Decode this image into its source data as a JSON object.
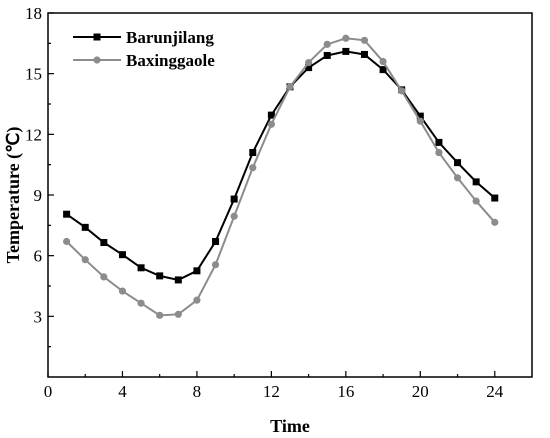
{
  "chart_data": {
    "type": "line",
    "xlabel": "Time",
    "ylabel": "Temperature (℃)",
    "xlim": [
      0,
      26
    ],
    "ylim": [
      0,
      18
    ],
    "xticks": [
      0,
      4,
      8,
      12,
      16,
      20,
      24
    ],
    "yticks": [
      3,
      6,
      9,
      12,
      15,
      18
    ],
    "grid": false,
    "legend_position": "top-left",
    "x": [
      1,
      2,
      3,
      4,
      5,
      6,
      7,
      8,
      9,
      10,
      11,
      12,
      13,
      14,
      15,
      16,
      17,
      18,
      19,
      20,
      21,
      22,
      23,
      24
    ],
    "series": [
      {
        "name": "Barunjilang",
        "color": "#000000",
        "marker": "square",
        "values": [
          8.05,
          7.4,
          6.65,
          6.05,
          5.4,
          5.0,
          4.8,
          5.25,
          6.7,
          8.8,
          11.1,
          12.95,
          14.35,
          15.3,
          15.9,
          16.1,
          15.95,
          15.2,
          14.2,
          12.9,
          11.6,
          10.6,
          9.65,
          8.85
        ]
      },
      {
        "name": "Baxinggaole",
        "color": "#8c8c8c",
        "marker": "circle",
        "values": [
          6.7,
          5.8,
          4.95,
          4.25,
          3.65,
          3.05,
          3.1,
          3.8,
          5.55,
          7.95,
          10.35,
          12.5,
          14.35,
          15.55,
          16.45,
          16.75,
          16.65,
          15.6,
          14.15,
          12.65,
          11.1,
          9.85,
          8.7,
          7.65
        ]
      }
    ]
  }
}
